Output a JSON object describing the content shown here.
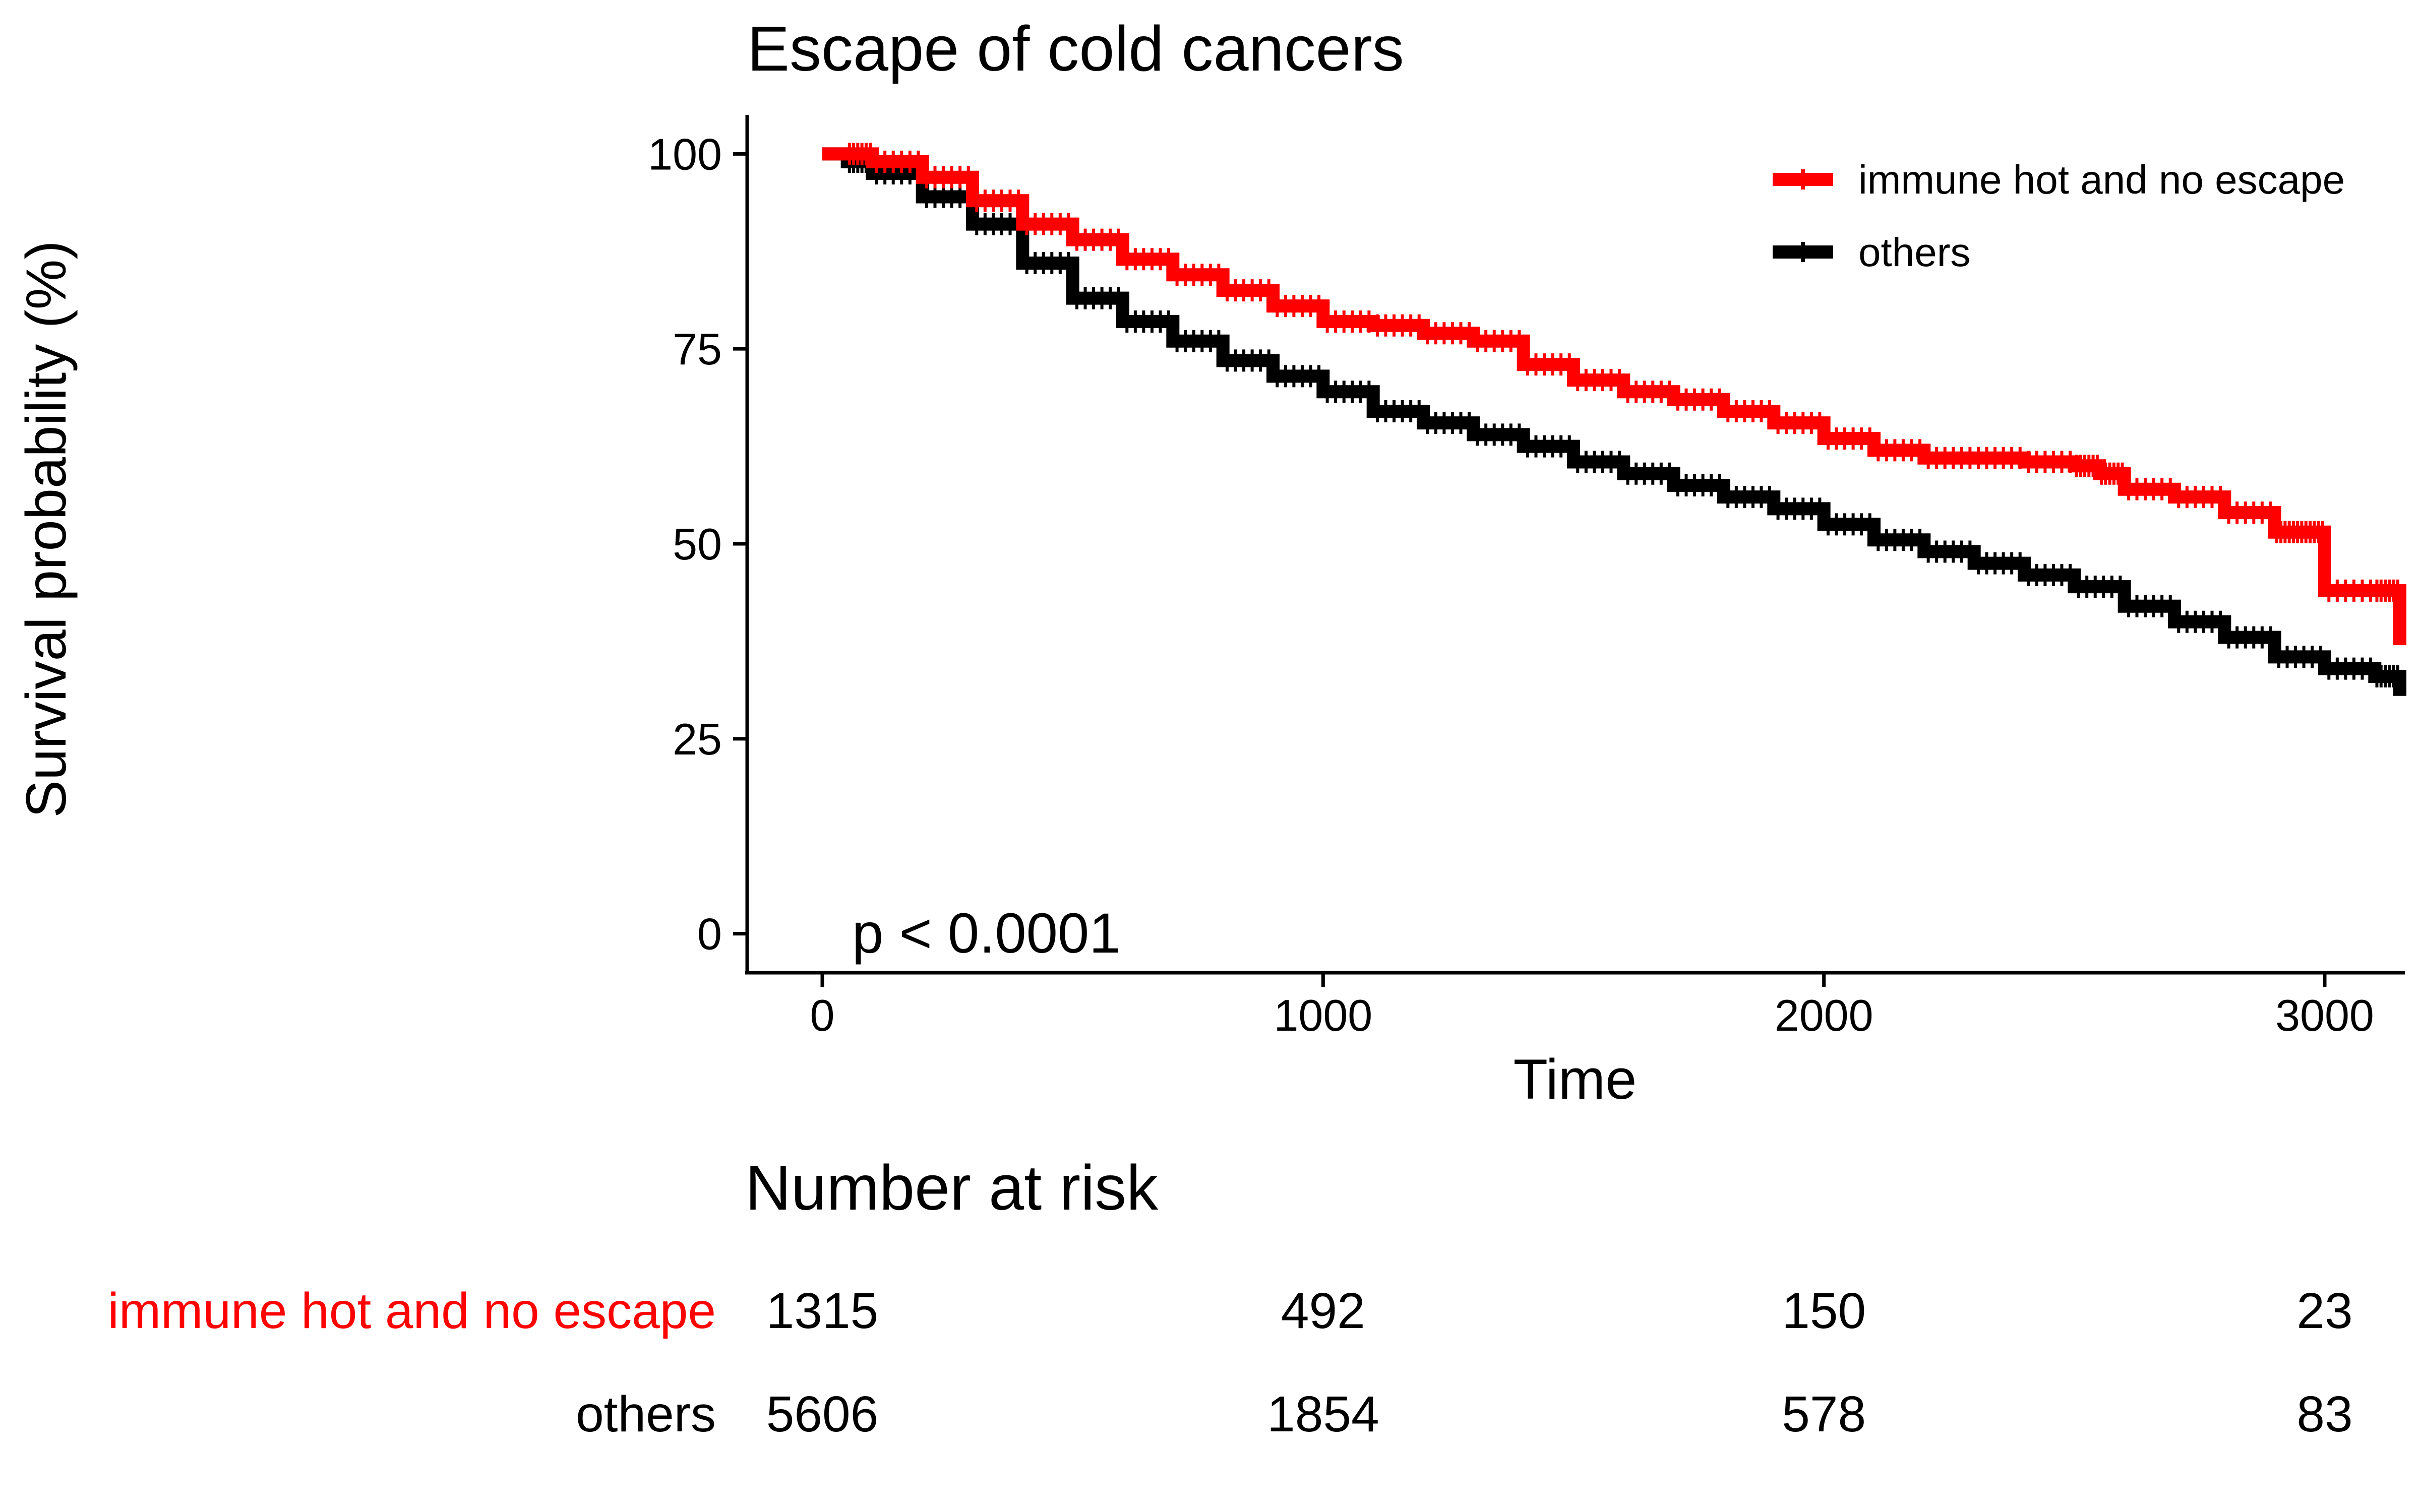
{
  "chart_data": {
    "type": "line",
    "title": "Escape of cold cancers",
    "xlabel": "Time",
    "ylabel": "Survival probability (%)",
    "xlim": [
      -150,
      3150
    ],
    "ylim": [
      -5,
      105
    ],
    "x_ticks": [
      0,
      1000,
      2000,
      3000
    ],
    "y_ticks": [
      0,
      25,
      50,
      75,
      100
    ],
    "grid": false,
    "legend_position": "top-right",
    "annotation": "p < 0.0001",
    "series": [
      {
        "name": "immune hot and no escape",
        "color": "#ff0000",
        "x": [
          0,
          50,
          100,
          200,
          300,
          400,
          500,
          600,
          700,
          800,
          900,
          1000,
          1100,
          1200,
          1300,
          1400,
          1500,
          1600,
          1700,
          1800,
          1900,
          2000,
          2100,
          2200,
          2300,
          2400,
          2500,
          2550,
          2600,
          2700,
          2800,
          2900,
          2950,
          3000,
          3100,
          3150
        ],
        "y": [
          100,
          100,
          99,
          97,
          94,
          91,
          89,
          86.5,
          84.5,
          82.5,
          80.5,
          78.5,
          78,
          77,
          76,
          73,
          71,
          69.5,
          68.5,
          67,
          65.5,
          63.5,
          62,
          61,
          61,
          60.5,
          60,
          59,
          57,
          56,
          54,
          51.5,
          51.5,
          44,
          44,
          37
        ]
      },
      {
        "name": "others",
        "color": "#000000",
        "x": [
          0,
          50,
          100,
          200,
          300,
          400,
          500,
          600,
          700,
          800,
          900,
          1000,
          1100,
          1200,
          1300,
          1400,
          1500,
          1600,
          1700,
          1800,
          1900,
          2000,
          2100,
          2200,
          2300,
          2400,
          2500,
          2600,
          2700,
          2800,
          2900,
          3000,
          3100,
          3150
        ],
        "y": [
          100,
          99,
          97.5,
          94.5,
          91,
          86,
          81.5,
          78.5,
          76,
          73.5,
          71.5,
          69.5,
          67,
          65.5,
          64,
          62.5,
          60.5,
          59,
          57.5,
          56,
          54.5,
          52.5,
          50.5,
          49,
          47.5,
          46,
          44.5,
          42,
          40,
          38,
          35.5,
          34,
          33,
          30.5
        ]
      }
    ]
  },
  "risk_table": {
    "title": "Number at risk",
    "times": [
      0,
      1000,
      2000,
      3000
    ],
    "rows": [
      {
        "label": "immune hot and no escape",
        "color": "#ff0000",
        "values": [
          "1315",
          "492",
          "150",
          "23"
        ]
      },
      {
        "label": "others",
        "color": "#000000",
        "values": [
          "5606",
          "1854",
          "578",
          "83"
        ]
      }
    ]
  }
}
